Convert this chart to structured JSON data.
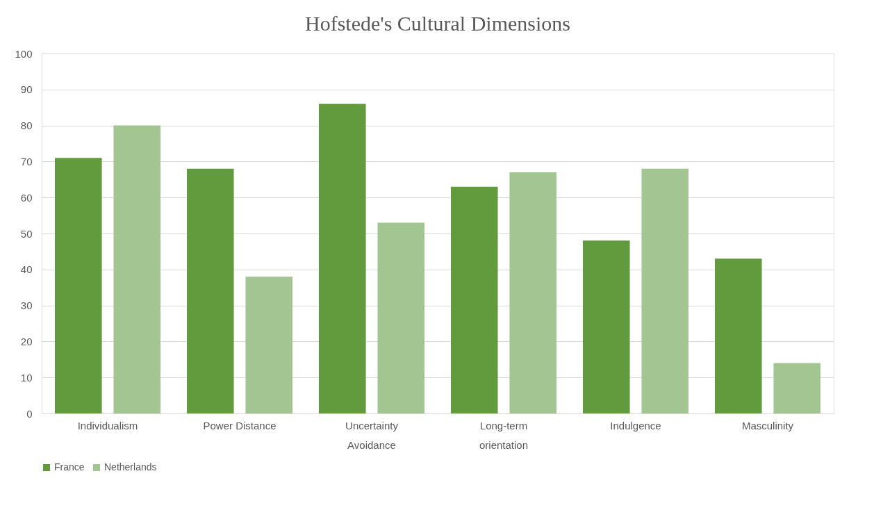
{
  "chart_data": {
    "type": "bar",
    "title": "Hofstede's Cultural Dimensions",
    "categories": [
      "Individualism",
      "Power Distance",
      "Uncertainty Avoidance",
      "Long-term orientation",
      "Indulgence",
      "Masculinity"
    ],
    "series": [
      {
        "name": "France",
        "color": "#619b3e",
        "values": [
          71,
          68,
          86,
          63,
          48,
          43
        ]
      },
      {
        "name": "Netherlands",
        "color": "#a2c591",
        "values": [
          80,
          38,
          53,
          67,
          68,
          14
        ]
      }
    ],
    "ylim": [
      0,
      100
    ],
    "yticks": [
      0,
      10,
      20,
      30,
      40,
      50,
      60,
      70,
      80,
      90,
      100
    ],
    "grid": "y",
    "legend": "bottom"
  }
}
